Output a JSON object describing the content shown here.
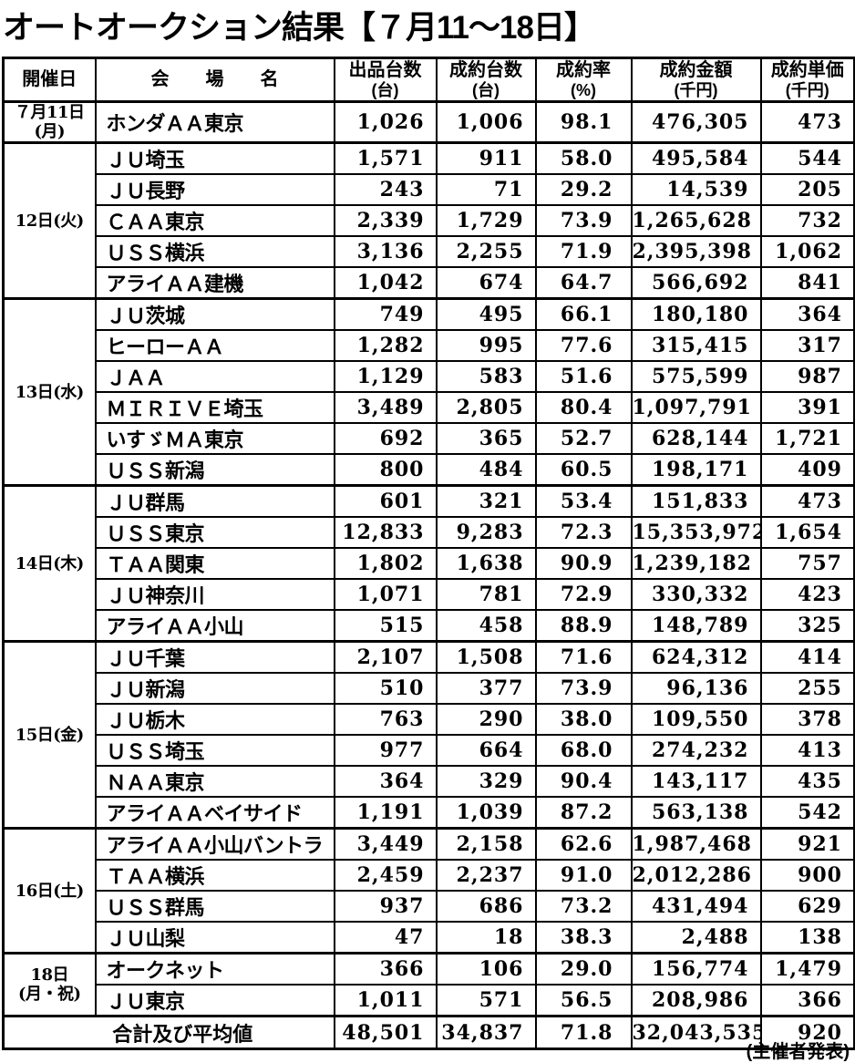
{
  "title": "オートオークション結果【７月11～18日】",
  "source_note": "(主催者発表)",
  "table": {
    "headers": {
      "date": "開催日",
      "venue": "会　　場　　名",
      "listed_l1": "出品台数",
      "listed_l2": "(台)",
      "sold_l1": "成約台数",
      "sold_l2": "(台)",
      "rate_l1": "成約率",
      "rate_l2": "(%)",
      "amount_l1": "成約金額",
      "amount_l2": "(千円)",
      "unit_l1": "成約単価",
      "unit_l2": "(千円)"
    },
    "groups": [
      {
        "date": "７月11日(月)",
        "rows": [
          {
            "venue": "ホンダＡＡ東京",
            "listed": "1,026",
            "sold": "1,006",
            "rate": "98.1",
            "amount": "476,305",
            "unit_price": "473"
          }
        ]
      },
      {
        "date": "12日(火)",
        "rows": [
          {
            "venue": "ＪＵ埼玉",
            "listed": "1,571",
            "sold": "911",
            "rate": "58.0",
            "amount": "495,584",
            "unit_price": "544"
          },
          {
            "venue": "ＪＵ長野",
            "listed": "243",
            "sold": "71",
            "rate": "29.2",
            "amount": "14,539",
            "unit_price": "205"
          },
          {
            "venue": "ＣＡＡ東京",
            "listed": "2,339",
            "sold": "1,729",
            "rate": "73.9",
            "amount": "1,265,628",
            "unit_price": "732"
          },
          {
            "venue": "ＵＳＳ横浜",
            "listed": "3,136",
            "sold": "2,255",
            "rate": "71.9",
            "amount": "2,395,398",
            "unit_price": "1,062"
          },
          {
            "venue": "アライＡＡ建機",
            "listed": "1,042",
            "sold": "674",
            "rate": "64.7",
            "amount": "566,692",
            "unit_price": "841"
          }
        ]
      },
      {
        "date": "13日(水)",
        "rows": [
          {
            "venue": "ＪＵ茨城",
            "listed": "749",
            "sold": "495",
            "rate": "66.1",
            "amount": "180,180",
            "unit_price": "364"
          },
          {
            "venue": "ヒーローＡＡ",
            "listed": "1,282",
            "sold": "995",
            "rate": "77.6",
            "amount": "315,415",
            "unit_price": "317"
          },
          {
            "venue": "ＪＡＡ",
            "listed": "1,129",
            "sold": "583",
            "rate": "51.6",
            "amount": "575,599",
            "unit_price": "987"
          },
          {
            "venue": "ＭＩＲＩＶＥ埼玉",
            "listed": "3,489",
            "sold": "2,805",
            "rate": "80.4",
            "amount": "1,097,791",
            "unit_price": "391"
          },
          {
            "venue": "いすゞＭＡ東京",
            "listed": "692",
            "sold": "365",
            "rate": "52.7",
            "amount": "628,144",
            "unit_price": "1,721"
          },
          {
            "venue": "ＵＳＳ新潟",
            "listed": "800",
            "sold": "484",
            "rate": "60.5",
            "amount": "198,171",
            "unit_price": "409"
          }
        ]
      },
      {
        "date": "14日(木)",
        "rows": [
          {
            "venue": "ＪＵ群馬",
            "listed": "601",
            "sold": "321",
            "rate": "53.4",
            "amount": "151,833",
            "unit_price": "473"
          },
          {
            "venue": "ＵＳＳ東京",
            "listed": "12,833",
            "sold": "9,283",
            "rate": "72.3",
            "amount": "15,353,972",
            "unit_price": "1,654"
          },
          {
            "venue": "ＴＡＡ関東",
            "listed": "1,802",
            "sold": "1,638",
            "rate": "90.9",
            "amount": "1,239,182",
            "unit_price": "757"
          },
          {
            "venue": "ＪＵ神奈川",
            "listed": "1,071",
            "sold": "781",
            "rate": "72.9",
            "amount": "330,332",
            "unit_price": "423"
          },
          {
            "venue": "アライＡＡ小山",
            "listed": "515",
            "sold": "458",
            "rate": "88.9",
            "amount": "148,789",
            "unit_price": "325"
          }
        ]
      },
      {
        "date": "15日(金)",
        "rows": [
          {
            "venue": "ＪＵ千葉",
            "listed": "2,107",
            "sold": "1,508",
            "rate": "71.6",
            "amount": "624,312",
            "unit_price": "414"
          },
          {
            "venue": "ＪＵ新潟",
            "listed": "510",
            "sold": "377",
            "rate": "73.9",
            "amount": "96,136",
            "unit_price": "255"
          },
          {
            "venue": "ＪＵ栃木",
            "listed": "763",
            "sold": "290",
            "rate": "38.0",
            "amount": "109,550",
            "unit_price": "378"
          },
          {
            "venue": "ＵＳＳ埼玉",
            "listed": "977",
            "sold": "664",
            "rate": "68.0",
            "amount": "274,232",
            "unit_price": "413"
          },
          {
            "venue": "ＮＡＡ東京",
            "listed": "364",
            "sold": "329",
            "rate": "90.4",
            "amount": "143,117",
            "unit_price": "435"
          },
          {
            "venue": "アライＡＡベイサイド",
            "listed": "1,191",
            "sold": "1,039",
            "rate": "87.2",
            "amount": "563,138",
            "unit_price": "542"
          }
        ]
      },
      {
        "date": "16日(土)",
        "rows": [
          {
            "venue": "アライＡＡ小山バントラ",
            "listed": "3,449",
            "sold": "2,158",
            "rate": "62.6",
            "amount": "1,987,468",
            "unit_price": "921"
          },
          {
            "venue": "ＴＡＡ横浜",
            "listed": "2,459",
            "sold": "2,237",
            "rate": "91.0",
            "amount": "2,012,286",
            "unit_price": "900"
          },
          {
            "venue": "ＵＳＳ群馬",
            "listed": "937",
            "sold": "686",
            "rate": "73.2",
            "amount": "431,494",
            "unit_price": "629"
          },
          {
            "venue": "ＪＵ山梨",
            "listed": "47",
            "sold": "18",
            "rate": "38.3",
            "amount": "2,488",
            "unit_price": "138"
          }
        ]
      },
      {
        "date": "18日\n(月・祝)",
        "rows": [
          {
            "venue": "オークネット",
            "listed": "366",
            "sold": "106",
            "rate": "29.0",
            "amount": "156,774",
            "unit_price": "1,479"
          },
          {
            "venue": "ＪＵ東京",
            "listed": "1,011",
            "sold": "571",
            "rate": "56.5",
            "amount": "208,986",
            "unit_price": "366"
          }
        ]
      }
    ],
    "total": {
      "label": "合計及び平均値",
      "listed": "48,501",
      "sold": "34,837",
      "rate": "71.8",
      "amount": "32,043,535",
      "unit_price": "920"
    }
  }
}
